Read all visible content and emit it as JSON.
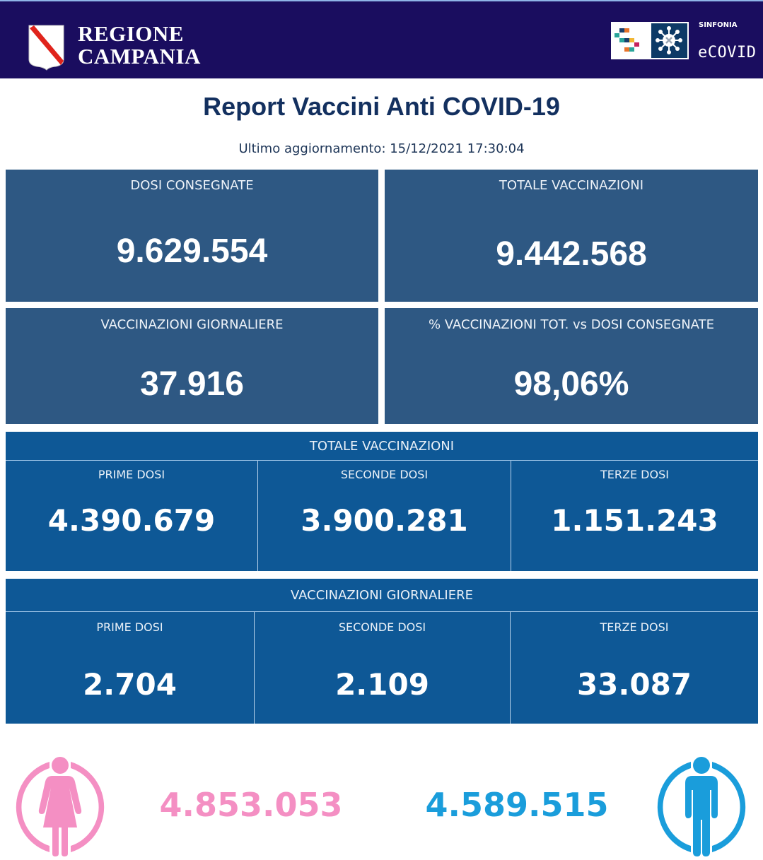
{
  "header": {
    "region_line1": "REGIONE",
    "region_line2": "CAMPANIA",
    "brand_small": "SINFONIA",
    "brand_name": "eCOVID"
  },
  "title": "Report Vaccini Anti COVID-19",
  "updated": "Ultimo aggiornamento: 15/12/2021  17:30:04",
  "cards": [
    {
      "label": "DOSI  CONSEGNATE",
      "value": "9.629.554"
    },
    {
      "label": "TOTALE VACCINAZIONI",
      "value": "9.442.568"
    },
    {
      "label": "VACCINAZIONI GIORNALIERE",
      "value": "37.916"
    },
    {
      "label": "% VACCINAZIONI TOT. vs DOSI CONSEGNATE",
      "value": "98,06%"
    }
  ],
  "totale_section": {
    "title": "TOTALE VACCINAZIONI",
    "cells": [
      {
        "label": "PRIME DOSI",
        "value": "4.390.679"
      },
      {
        "label": "SECONDE DOSI",
        "value": "3.900.281"
      },
      {
        "label": "TERZE DOSI",
        "value": "1.151.243"
      }
    ]
  },
  "giornaliere_section": {
    "title": "VACCINAZIONI GIORNALIERE",
    "cells": [
      {
        "label": "PRIME DOSI",
        "value": "2.704"
      },
      {
        "label": "SECONDE DOSI",
        "value": "2.109"
      },
      {
        "label": "TERZE DOSI",
        "value": "33.087"
      }
    ]
  },
  "gender": {
    "female": {
      "value": "4.853.053",
      "icon": "female-icon",
      "color": "#f48fc3"
    },
    "male": {
      "value": "4.589.515",
      "icon": "male-icon",
      "color": "#1a9ddb"
    }
  },
  "colors": {
    "topbar": "#1a0d5f",
    "card": "#2e5883",
    "section": "#0e5896",
    "title": "#13305f"
  }
}
